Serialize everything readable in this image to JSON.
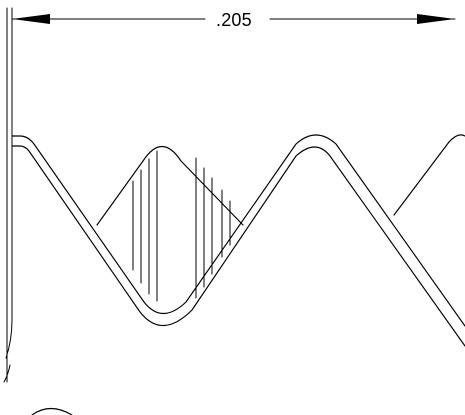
{
  "drawing": {
    "dimension_label": ".205"
  }
}
